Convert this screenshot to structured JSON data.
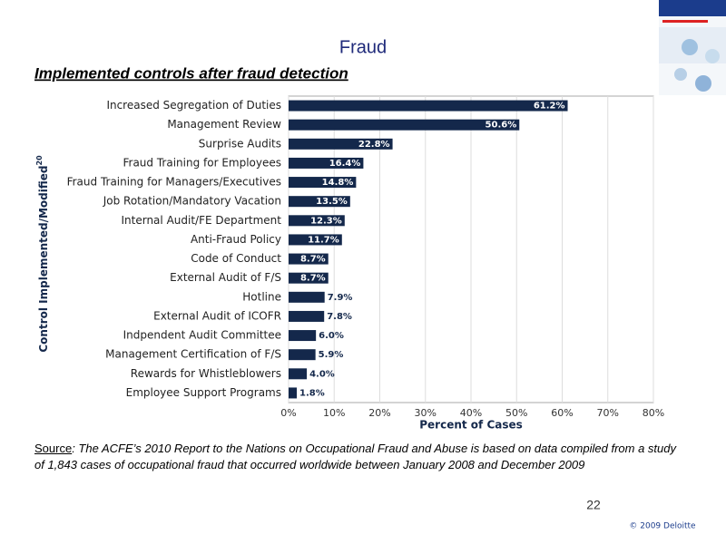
{
  "slide": {
    "title": "Fraud",
    "subtitle": "Implemented controls after fraud detection",
    "source_label": "Source",
    "source_text": ": The ACFE’s 2010 Report to the Nations on Occupational Fraud and Abuse is based on data compiled from a study of 1,843 cases of occupational fraud that occurred worldwide between January 2008 and December 2009",
    "page_number": "22",
    "copyright": "© 2009 Deloitte"
  },
  "chart_data": {
    "type": "hbar",
    "y_label": "Control Implemented/Modified",
    "y_label_note": "20",
    "x_label": "Percent of Cases",
    "categories": [
      "Increased Segregation of Duties",
      "Management Review",
      "Surprise Audits",
      "Fraud Training for Employees",
      "Fraud Training for Managers/Executives",
      "Job Rotation/Mandatory Vacation",
      "Internal Audit/FE Department",
      "Anti-Fraud Policy",
      "Code of Conduct",
      "External Audit of F/S",
      "Hotline",
      "External Audit of ICOFR",
      "Indpendent Audit Committee",
      "Management Certification of F/S",
      "Rewards for Whistleblowers",
      "Employee Support Programs"
    ],
    "values": [
      61.2,
      50.6,
      22.8,
      16.4,
      14.8,
      13.5,
      12.3,
      11.7,
      8.7,
      8.7,
      7.9,
      7.8,
      6.0,
      5.9,
      4.0,
      1.8
    ],
    "value_labels": [
      "61.2%",
      "50.6%",
      "22.8%",
      "16.4%",
      "14.8%",
      "13.5%",
      "12.3%",
      "11.7%",
      "8.7%",
      "8.7%",
      "7.9%",
      "7.8%",
      "6.0%",
      "5.9%",
      "4.0%",
      "1.8%"
    ],
    "color": "#14284b",
    "xlim": [
      0,
      80
    ],
    "xticks": [
      {
        "value": 0,
        "label": "0%"
      },
      {
        "value": 10,
        "label": "10%"
      },
      {
        "value": 20,
        "label": "20%"
      },
      {
        "value": 30,
        "label": "30%"
      },
      {
        "value": 40,
        "label": "40%"
      },
      {
        "value": 50,
        "label": "50%"
      },
      {
        "value": 60,
        "label": "60%"
      },
      {
        "value": 70,
        "label": "70%"
      },
      {
        "value": 80,
        "label": "80%"
      }
    ],
    "grid": true
  }
}
